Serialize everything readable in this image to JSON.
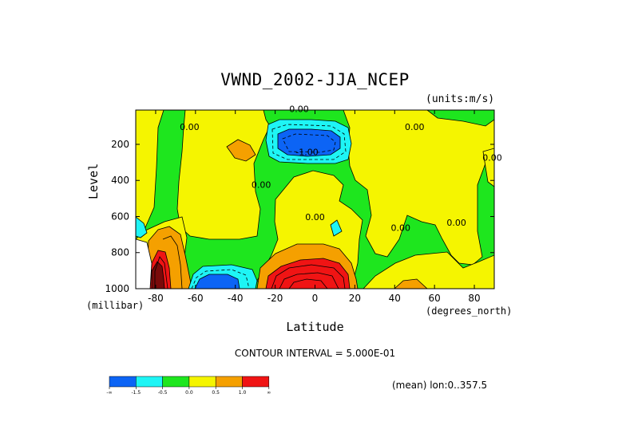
{
  "title": "VWND_2002-JJA_NCEP",
  "units_note": "(units:m/s)",
  "contour_interval": "CONTOUR INTERVAL = 5.000E-01",
  "mean_note": "(mean) lon:0..357.5",
  "chart_data": {
    "type": "heatmap",
    "variable": "VWND",
    "xlabel": "Latitude",
    "xlabel_unit": "(degrees_north)",
    "ylabel": "Level",
    "ylabel_unit": "(millibar)",
    "xlim": [
      -90,
      90
    ],
    "ylim": [
      1000,
      10
    ],
    "x_ticks": [
      -80,
      -60,
      -40,
      -20,
      0,
      20,
      40,
      60,
      80
    ],
    "y_ticks": [
      200,
      400,
      600,
      800,
      1000
    ],
    "contour_labels": [
      {
        "text": "0.00",
        "lat": -63,
        "lev": 120
      },
      {
        "text": "0.00",
        "lat": -27,
        "lev": 440
      },
      {
        "text": "0.00",
        "lat": -8,
        "lev": 20
      },
      {
        "text": "-1.00",
        "lat": -4,
        "lev": 260
      },
      {
        "text": "0.00",
        "lat": 0,
        "lev": 620
      },
      {
        "text": "0.00",
        "lat": 43,
        "lev": 680
      },
      {
        "text": "0.00",
        "lat": 50,
        "lev": 120
      },
      {
        "text": "0.00",
        "lat": 71,
        "lev": 650
      },
      {
        "text": "0.00",
        "lat": 89,
        "lev": 290
      }
    ],
    "colorbar": {
      "colors": [
        "#0c64f5",
        "#1ef5f5",
        "#1ee61e",
        "#f5f500",
        "#f5a000",
        "#f01414"
      ],
      "labels": [
        "-∞",
        "-1.5",
        "-0.5",
        "0.0",
        "0.5",
        "1.0",
        "∞"
      ]
    }
  }
}
